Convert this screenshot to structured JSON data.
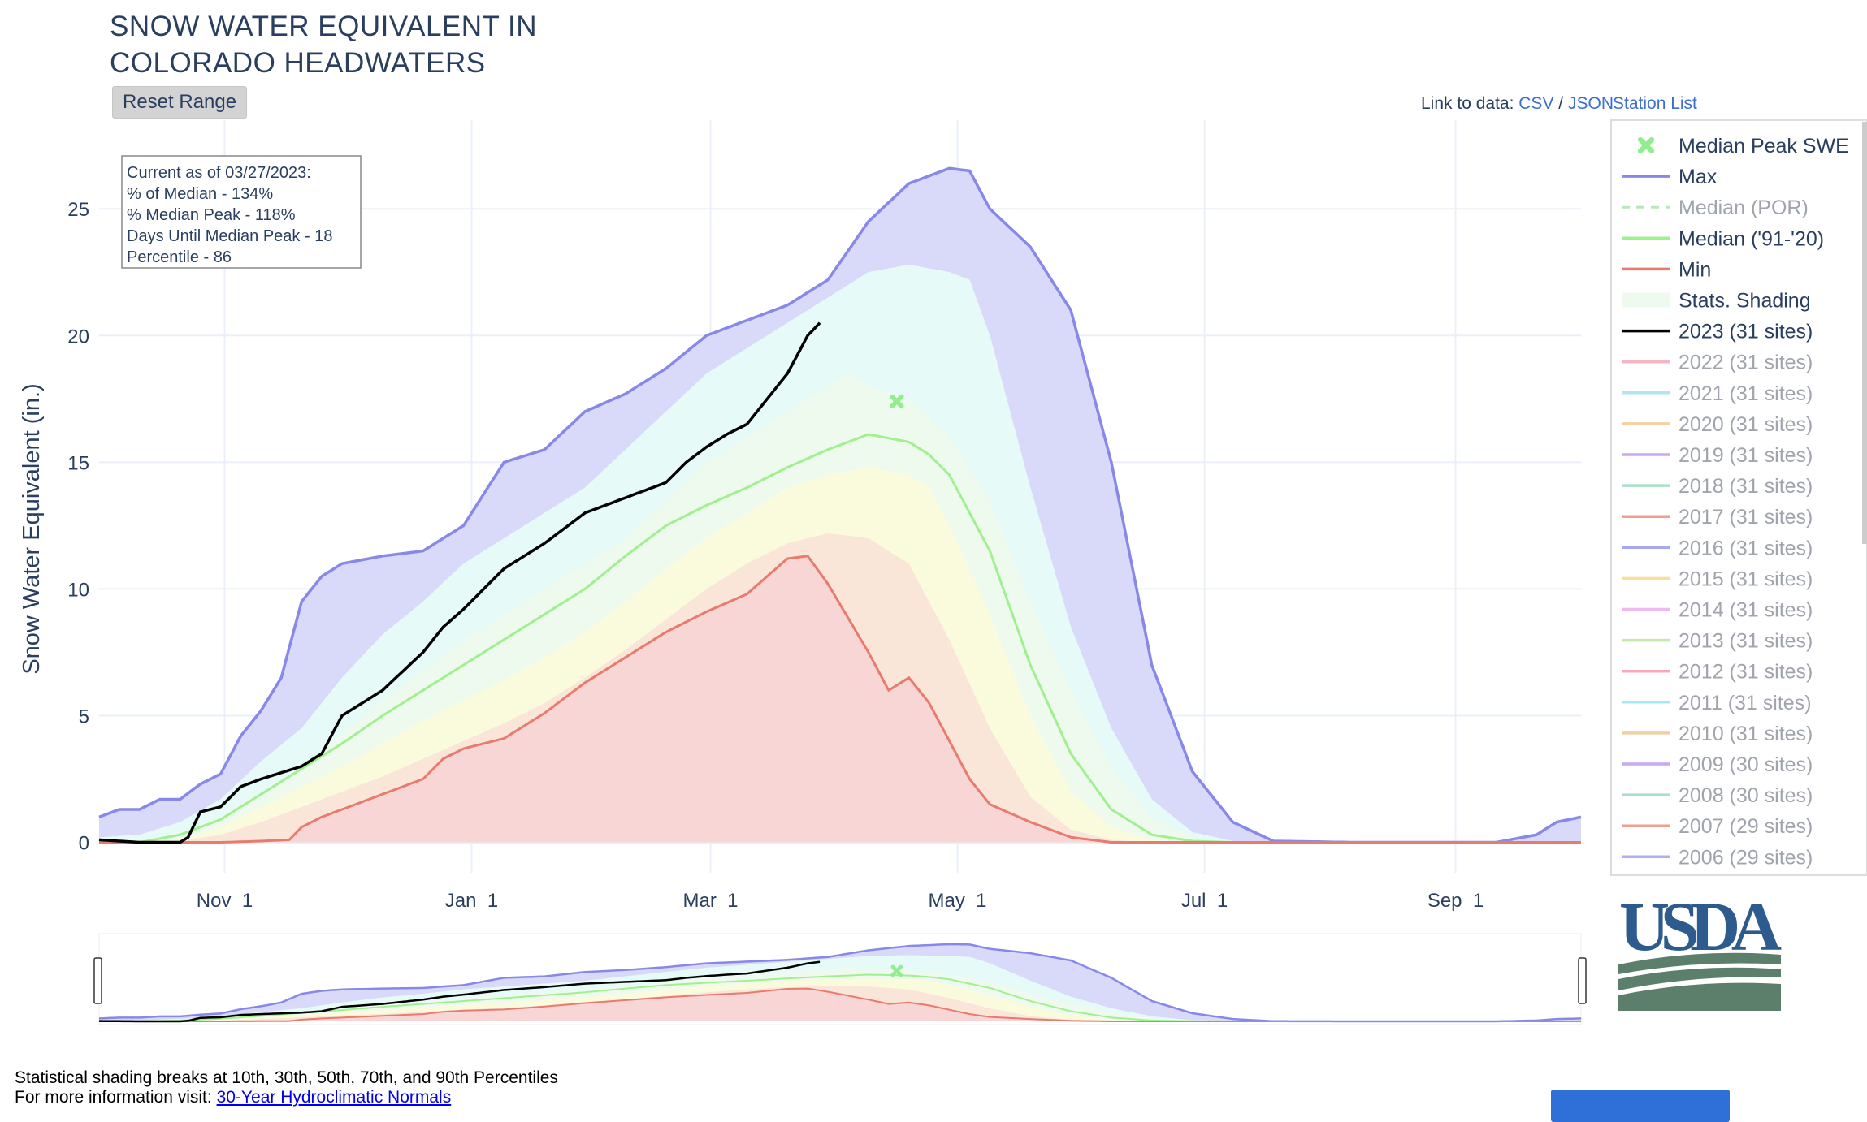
{
  "title": "SNOW WATER EQUIVALENT IN\nCOLORADO HEADWATERS",
  "reset_label": "Reset Range",
  "links": {
    "prefix": "Link to data:",
    "csv": "CSV",
    "sep": "/",
    "json": "JSON",
    "station_list": "Station List"
  },
  "info_box": [
    "Current as of 03/27/2023:",
    "% of Median - 134%",
    "% Median Peak - 118%",
    "Days Until Median Peak - 18",
    "Percentile - 86"
  ],
  "footer": {
    "line1": "Statistical shading breaks at 10th, 30th, 50th, 70th, and 90th Percentiles",
    "line2_prefix": "For more information visit: ",
    "line2_link": "30-Year Hydroclimatic Normals"
  },
  "logo_text": "USDA",
  "colors": {
    "max": "#8888e8",
    "median": "#a0f090",
    "min": "#e87a6e",
    "current": "#000000",
    "band_max": "#d9d9fa",
    "band_90": "#e6faf8",
    "band_70": "#eefaee",
    "band_50": "#fafadc",
    "band_30": "#fae6d9",
    "band_min": "#f9d6d6",
    "usda_blue": "#2e5b8e",
    "usda_green": "#5b7f6a"
  },
  "chart_data": {
    "type": "area",
    "ylabel": "Snow Water Equivalent (in.)",
    "xlabel": "",
    "ylim": [
      -1.2,
      28.5
    ],
    "yticks": [
      0,
      5,
      10,
      15,
      20,
      25
    ],
    "xticks": [
      {
        "label": "Nov 1",
        "day": 31
      },
      {
        "label": "Jan 1",
        "day": 92
      },
      {
        "label": "Mar 1",
        "day": 151
      },
      {
        "label": "May 1",
        "day": 212
      },
      {
        "label": "Jul 1",
        "day": 273
      },
      {
        "label": "Sep 1",
        "day": 335
      }
    ],
    "x_range_days": [
      0,
      366
    ],
    "max": [
      [
        0,
        1
      ],
      [
        5,
        1.3
      ],
      [
        10,
        1.3
      ],
      [
        15,
        1.7
      ],
      [
        20,
        1.7
      ],
      [
        25,
        2.3
      ],
      [
        30,
        2.7
      ],
      [
        35,
        4.2
      ],
      [
        40,
        5.2
      ],
      [
        45,
        6.5
      ],
      [
        50,
        9.5
      ],
      [
        55,
        10.5
      ],
      [
        60,
        11
      ],
      [
        70,
        11.3
      ],
      [
        80,
        11.5
      ],
      [
        90,
        12.5
      ],
      [
        100,
        15
      ],
      [
        110,
        15.5
      ],
      [
        120,
        17
      ],
      [
        130,
        17.7
      ],
      [
        140,
        18.7
      ],
      [
        150,
        20
      ],
      [
        160,
        20.6
      ],
      [
        170,
        21.2
      ],
      [
        180,
        22.2
      ],
      [
        190,
        24.5
      ],
      [
        200,
        26
      ],
      [
        210,
        26.6
      ],
      [
        215,
        26.5
      ],
      [
        220,
        25
      ],
      [
        230,
        23.5
      ],
      [
        240,
        21
      ],
      [
        250,
        15
      ],
      [
        260,
        7
      ],
      [
        270,
        2.8
      ],
      [
        280,
        0.8
      ],
      [
        290,
        0.05
      ],
      [
        310,
        0
      ],
      [
        345,
        0
      ],
      [
        355,
        0.3
      ],
      [
        360,
        0.8
      ],
      [
        366,
        1
      ]
    ],
    "p90": [
      [
        0,
        0.2
      ],
      [
        10,
        0.3
      ],
      [
        20,
        0.8
      ],
      [
        30,
        1.7
      ],
      [
        40,
        3.2
      ],
      [
        50,
        4.5
      ],
      [
        60,
        6.5
      ],
      [
        70,
        8.2
      ],
      [
        80,
        9.5
      ],
      [
        90,
        11
      ],
      [
        100,
        12
      ],
      [
        110,
        13
      ],
      [
        120,
        14
      ],
      [
        130,
        15.5
      ],
      [
        140,
        17
      ],
      [
        150,
        18.5
      ],
      [
        160,
        19.5
      ],
      [
        170,
        20.5
      ],
      [
        180,
        21.5
      ],
      [
        190,
        22.5
      ],
      [
        200,
        22.8
      ],
      [
        210,
        22.5
      ],
      [
        215,
        22.2
      ],
      [
        220,
        20
      ],
      [
        230,
        14
      ],
      [
        240,
        8.5
      ],
      [
        250,
        4.5
      ],
      [
        260,
        1.7
      ],
      [
        270,
        0.4
      ],
      [
        280,
        0.05
      ],
      [
        290,
        0
      ],
      [
        366,
        0
      ]
    ],
    "p70": [
      [
        0,
        0.1
      ],
      [
        10,
        0.1
      ],
      [
        20,
        0.4
      ],
      [
        30,
        1
      ],
      [
        40,
        2
      ],
      [
        50,
        3
      ],
      [
        60,
        4.3
      ],
      [
        70,
        5.6
      ],
      [
        80,
        6.8
      ],
      [
        90,
        8
      ],
      [
        100,
        9
      ],
      [
        110,
        10
      ],
      [
        120,
        11
      ],
      [
        130,
        12
      ],
      [
        140,
        13.5
      ],
      [
        150,
        15
      ],
      [
        160,
        16
      ],
      [
        170,
        17
      ],
      [
        180,
        18
      ],
      [
        185,
        18.5
      ],
      [
        190,
        18
      ],
      [
        200,
        17.5
      ],
      [
        210,
        16
      ],
      [
        220,
        13.5
      ],
      [
        230,
        9.5
      ],
      [
        240,
        6
      ],
      [
        250,
        3
      ],
      [
        260,
        1
      ],
      [
        270,
        0.2
      ],
      [
        280,
        0
      ],
      [
        366,
        0
      ]
    ],
    "median": [
      [
        0,
        0
      ],
      [
        10,
        0
      ],
      [
        20,
        0.3
      ],
      [
        30,
        0.9
      ],
      [
        40,
        1.9
      ],
      [
        50,
        2.9
      ],
      [
        60,
        3.9
      ],
      [
        70,
        5
      ],
      [
        80,
        6
      ],
      [
        90,
        7
      ],
      [
        100,
        8
      ],
      [
        110,
        9
      ],
      [
        120,
        10
      ],
      [
        130,
        11.3
      ],
      [
        140,
        12.5
      ],
      [
        150,
        13.3
      ],
      [
        160,
        14
      ],
      [
        170,
        14.8
      ],
      [
        180,
        15.5
      ],
      [
        190,
        16.1
      ],
      [
        200,
        15.8
      ],
      [
        205,
        15.3
      ],
      [
        210,
        14.5
      ],
      [
        220,
        11.5
      ],
      [
        230,
        7
      ],
      [
        240,
        3.5
      ],
      [
        250,
        1.3
      ],
      [
        260,
        0.3
      ],
      [
        270,
        0.05
      ],
      [
        280,
        0
      ],
      [
        366,
        0
      ]
    ],
    "p30": [
      [
        0,
        0
      ],
      [
        10,
        0
      ],
      [
        20,
        0.15
      ],
      [
        30,
        0.6
      ],
      [
        40,
        1.4
      ],
      [
        50,
        2.2
      ],
      [
        60,
        3
      ],
      [
        70,
        3.9
      ],
      [
        80,
        4.8
      ],
      [
        90,
        5.6
      ],
      [
        100,
        6.4
      ],
      [
        110,
        7.3
      ],
      [
        120,
        8.3
      ],
      [
        130,
        9.5
      ],
      [
        140,
        10.8
      ],
      [
        150,
        12
      ],
      [
        160,
        13
      ],
      [
        170,
        14
      ],
      [
        180,
        14.5
      ],
      [
        190,
        14.8
      ],
      [
        200,
        14.5
      ],
      [
        205,
        14
      ],
      [
        210,
        12.5
      ],
      [
        220,
        9
      ],
      [
        230,
        5
      ],
      [
        240,
        2
      ],
      [
        250,
        0.6
      ],
      [
        260,
        0.1
      ],
      [
        270,
        0
      ],
      [
        366,
        0
      ]
    ],
    "p10": [
      [
        0,
        0
      ],
      [
        10,
        0
      ],
      [
        20,
        0.05
      ],
      [
        30,
        0.3
      ],
      [
        40,
        0.8
      ],
      [
        50,
        1.4
      ],
      [
        60,
        2
      ],
      [
        70,
        2.6
      ],
      [
        80,
        3.3
      ],
      [
        90,
        4
      ],
      [
        100,
        4.7
      ],
      [
        110,
        5.5
      ],
      [
        120,
        6.5
      ],
      [
        130,
        7.6
      ],
      [
        140,
        8.8
      ],
      [
        150,
        10
      ],
      [
        160,
        11
      ],
      [
        170,
        11.8
      ],
      [
        180,
        12.2
      ],
      [
        190,
        12
      ],
      [
        200,
        11
      ],
      [
        210,
        8
      ],
      [
        220,
        4.5
      ],
      [
        230,
        1.8
      ],
      [
        240,
        0.5
      ],
      [
        250,
        0.1
      ],
      [
        260,
        0
      ],
      [
        366,
        0
      ]
    ],
    "min": [
      [
        0,
        0
      ],
      [
        30,
        0
      ],
      [
        40,
        0.05
      ],
      [
        47,
        0.1
      ],
      [
        50,
        0.6
      ],
      [
        55,
        1
      ],
      [
        60,
        1.3
      ],
      [
        70,
        1.9
      ],
      [
        80,
        2.5
      ],
      [
        85,
        3.3
      ],
      [
        90,
        3.7
      ],
      [
        100,
        4.1
      ],
      [
        110,
        5.1
      ],
      [
        120,
        6.3
      ],
      [
        130,
        7.3
      ],
      [
        140,
        8.3
      ],
      [
        150,
        9.1
      ],
      [
        160,
        9.8
      ],
      [
        170,
        11.2
      ],
      [
        175,
        11.3
      ],
      [
        180,
        10.2
      ],
      [
        190,
        7.5
      ],
      [
        195,
        6
      ],
      [
        200,
        6.5
      ],
      [
        205,
        5.5
      ],
      [
        210,
        4
      ],
      [
        215,
        2.5
      ],
      [
        220,
        1.5
      ],
      [
        230,
        0.8
      ],
      [
        240,
        0.2
      ],
      [
        250,
        0
      ],
      [
        366,
        0
      ]
    ],
    "current_2023": [
      [
        0,
        0.1
      ],
      [
        10,
        0
      ],
      [
        20,
        0
      ],
      [
        22,
        0.2
      ],
      [
        25,
        1.2
      ],
      [
        30,
        1.4
      ],
      [
        35,
        2.2
      ],
      [
        40,
        2.5
      ],
      [
        50,
        3
      ],
      [
        55,
        3.5
      ],
      [
        60,
        5
      ],
      [
        65,
        5.5
      ],
      [
        70,
        6
      ],
      [
        80,
        7.5
      ],
      [
        85,
        8.5
      ],
      [
        90,
        9.2
      ],
      [
        100,
        10.8
      ],
      [
        110,
        11.8
      ],
      [
        120,
        13
      ],
      [
        130,
        13.6
      ],
      [
        140,
        14.2
      ],
      [
        145,
        15
      ],
      [
        150,
        15.6
      ],
      [
        155,
        16.1
      ],
      [
        160,
        16.5
      ],
      [
        165,
        17.5
      ],
      [
        170,
        18.5
      ],
      [
        175,
        20
      ],
      [
        178,
        20.5
      ]
    ],
    "median_peak": {
      "day": 197,
      "value": 17.4
    },
    "legend": [
      {
        "name": "Median Peak SWE",
        "active": true
      },
      {
        "name": "Max",
        "active": true
      },
      {
        "name": "Median (POR)",
        "active": false
      },
      {
        "name": "Median ('91-'20)",
        "active": true
      },
      {
        "name": "Min",
        "active": true
      },
      {
        "name": "Stats. Shading",
        "active": true
      },
      {
        "name": "2023 (31 sites)",
        "active": true
      },
      {
        "name": "2022 (31 sites)",
        "active": false
      },
      {
        "name": "2021 (31 sites)",
        "active": false
      },
      {
        "name": "2020 (31 sites)",
        "active": false
      },
      {
        "name": "2019 (31 sites)",
        "active": false
      },
      {
        "name": "2018 (31 sites)",
        "active": false
      },
      {
        "name": "2017 (31 sites)",
        "active": false
      },
      {
        "name": "2016 (31 sites)",
        "active": false
      },
      {
        "name": "2015 (31 sites)",
        "active": false
      },
      {
        "name": "2014 (31 sites)",
        "active": false
      },
      {
        "name": "2013 (31 sites)",
        "active": false
      },
      {
        "name": "2012 (31 sites)",
        "active": false
      },
      {
        "name": "2011 (31 sites)",
        "active": false
      },
      {
        "name": "2010 (31 sites)",
        "active": false
      },
      {
        "name": "2009 (30 sites)",
        "active": false
      },
      {
        "name": "2008 (30 sites)",
        "active": false
      },
      {
        "name": "2007 (29 sites)",
        "active": false
      },
      {
        "name": "2006 (29 sites)",
        "active": false
      }
    ],
    "legend_colors": [
      "#90ee90",
      "#8888e8",
      "#b8e8b8",
      "#a0f090",
      "#e87a6e",
      "#eefaee",
      "#000000",
      "#f4b6c2",
      "#b3e5f0",
      "#f8cfa0",
      "#c9a8f0",
      "#a8e0c8",
      "#eea090",
      "#a8a8f0",
      "#f8e0a0",
      "#f0b8f0",
      "#c8e8a8",
      "#f8a8b8",
      "#a8e8f0",
      "#f0d0a0",
      "#c8a8f0",
      "#a8e0c8",
      "#eea090",
      "#b0b0f0"
    ],
    "grid": true,
    "legend_position": "right"
  }
}
